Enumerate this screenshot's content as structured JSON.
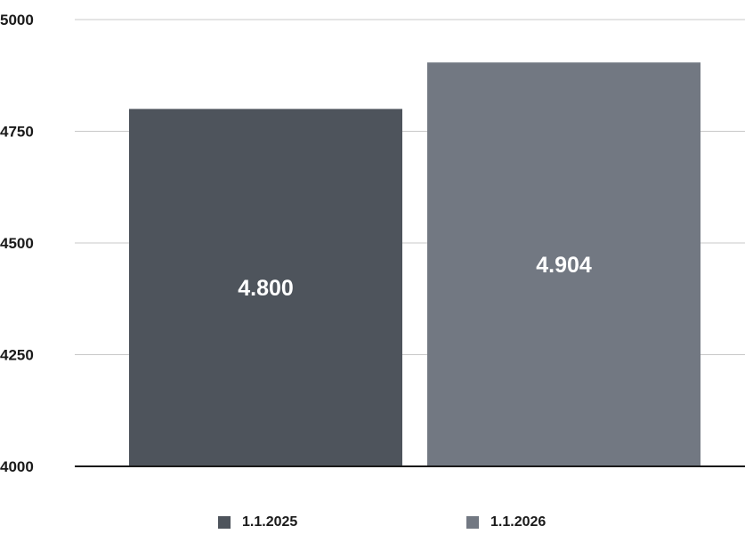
{
  "chart_data": {
    "type": "bar",
    "categories": [
      "1.1.2025",
      "1.1.2026"
    ],
    "values": [
      4800,
      4904
    ],
    "value_labels": [
      "4.800",
      "4.904"
    ],
    "colors": [
      "#4e545c",
      "#727882"
    ],
    "ylim": [
      4000,
      5000
    ],
    "yticks": [
      4000,
      4250,
      4500,
      4750,
      5000
    ],
    "grid": true,
    "legend_position": "bottom",
    "title": "",
    "xlabel": "",
    "ylabel": ""
  },
  "legend": {
    "items": [
      {
        "label": "1.1.2025",
        "color": "#4e545c"
      },
      {
        "label": "1.1.2026",
        "color": "#727882"
      }
    ]
  }
}
